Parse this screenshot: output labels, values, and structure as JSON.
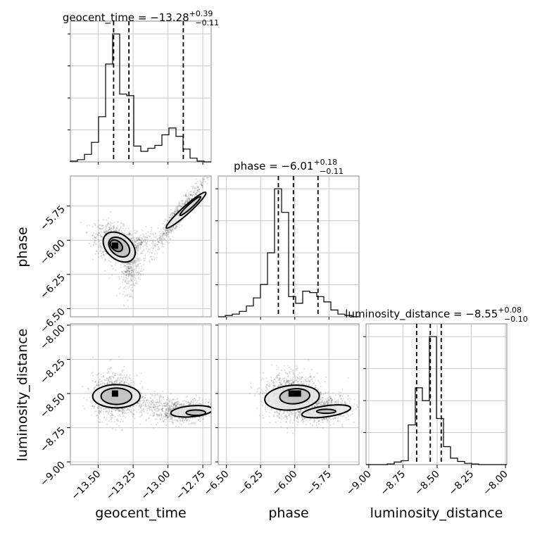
{
  "chart_data": {
    "type": "corner",
    "grid": true,
    "parameters": [
      "geocent_time",
      "phase",
      "luminosity_distance"
    ],
    "titles": [
      {
        "param": "geocent_time",
        "label": "geocent_time = −13.28",
        "plus": "+0.39",
        "minus": "−0.11"
      },
      {
        "param": "phase",
        "label": "phase = −6.01",
        "plus": "+0.18",
        "minus": "−0.11"
      },
      {
        "param": "luminosity_distance",
        "label": "luminosity_distance = −8.55",
        "plus": "+0.08",
        "minus": "−0.10"
      }
    ],
    "ranges": {
      "geocent_time": [
        -13.7,
        -12.69
      ],
      "phase": [
        -6.56,
        -5.53
      ],
      "luminosity_distance": [
        -9.02,
        -7.99
      ]
    },
    "ticks": {
      "geocent_time": {
        "values": [
          -13.5,
          -13.25,
          -13.0,
          -12.75
        ],
        "labels": [
          "−13.50",
          "−13.25",
          "−13.00",
          "−12.75"
        ]
      },
      "phase": {
        "values": [
          -6.5,
          -6.25,
          -6.0,
          -5.75
        ],
        "labels": [
          "−6.50",
          "−6.25",
          "−6.00",
          "−5.75"
        ]
      },
      "luminosity_distance": {
        "values": [
          -9.0,
          -8.75,
          -8.5,
          -8.25,
          -8.0
        ],
        "labels": [
          "−9.00",
          "−8.75",
          "−8.50",
          "−8.25",
          "−8.00"
        ]
      }
    },
    "quantiles": {
      "geocent_time": [
        -13.39,
        -13.28,
        -12.89
      ],
      "phase": [
        -6.12,
        -6.01,
        -5.83
      ],
      "luminosity_distance": [
        -8.65,
        -8.55,
        -8.47
      ]
    },
    "histograms": {
      "geocent_time": {
        "edges_start": -13.7,
        "bin_width": 0.0505,
        "counts": [
          1,
          3,
          10,
          26,
          60,
          130,
          170,
          90,
          88,
          21,
          14,
          18,
          22,
          36,
          45,
          34,
          17,
          5,
          1,
          0
        ]
      },
      "phase": {
        "edges_start": -6.56,
        "bin_width": 0.0515,
        "counts": [
          0,
          2,
          4,
          8,
          16,
          28,
          48,
          95,
          190,
          155,
          30,
          20,
          38,
          36,
          30,
          22,
          10,
          4,
          2,
          0
        ]
      },
      "luminosity_distance": {
        "edges_start": -9.02,
        "bin_width": 0.0515,
        "counts": [
          0,
          0,
          0,
          1,
          4,
          6,
          62,
          120,
          100,
          200,
          72,
          28,
          10,
          5,
          2,
          1,
          0,
          0,
          0,
          0
        ]
      }
    },
    "peaks": {
      "geocent_time_phase": [
        -13.38,
        -6.04
      ],
      "geocent_time_luminosity_distance": [
        -13.38,
        -8.5
      ],
      "phase_luminosity_distance": [
        -6.0,
        -8.5
      ]
    }
  }
}
